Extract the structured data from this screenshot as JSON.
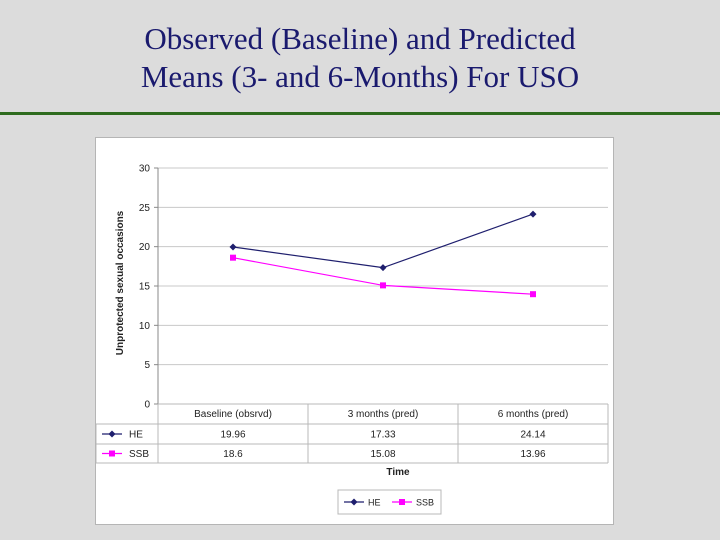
{
  "slide": {
    "title_line1": "Observed (Baseline) and Predicted",
    "title_line2": "Means (3- and 6-Months) For USO"
  },
  "chart_data": {
    "type": "line",
    "categories": [
      "Baseline (obsrvd)",
      "3 months (pred)",
      "6 months (pred)"
    ],
    "series": [
      {
        "name": "HE",
        "values": [
          19.96,
          17.33,
          24.14
        ],
        "value_labels": [
          "19.96",
          "17.33",
          "24.14"
        ],
        "color": "#1f1f6e",
        "marker": "diamond"
      },
      {
        "name": "SSB",
        "values": [
          18.6,
          15.08,
          13.96
        ],
        "value_labels": [
          "18.6",
          "15.08",
          "13.96"
        ],
        "color": "#ff00ff",
        "marker": "square"
      }
    ],
    "ylabel": "Unprotected sexual occasions",
    "xlabel": "Time",
    "ylim": [
      0,
      30
    ],
    "yticks": [
      0,
      5,
      10,
      15,
      20,
      25,
      30
    ],
    "grid": true,
    "legend": "bottom",
    "data_table": true
  }
}
